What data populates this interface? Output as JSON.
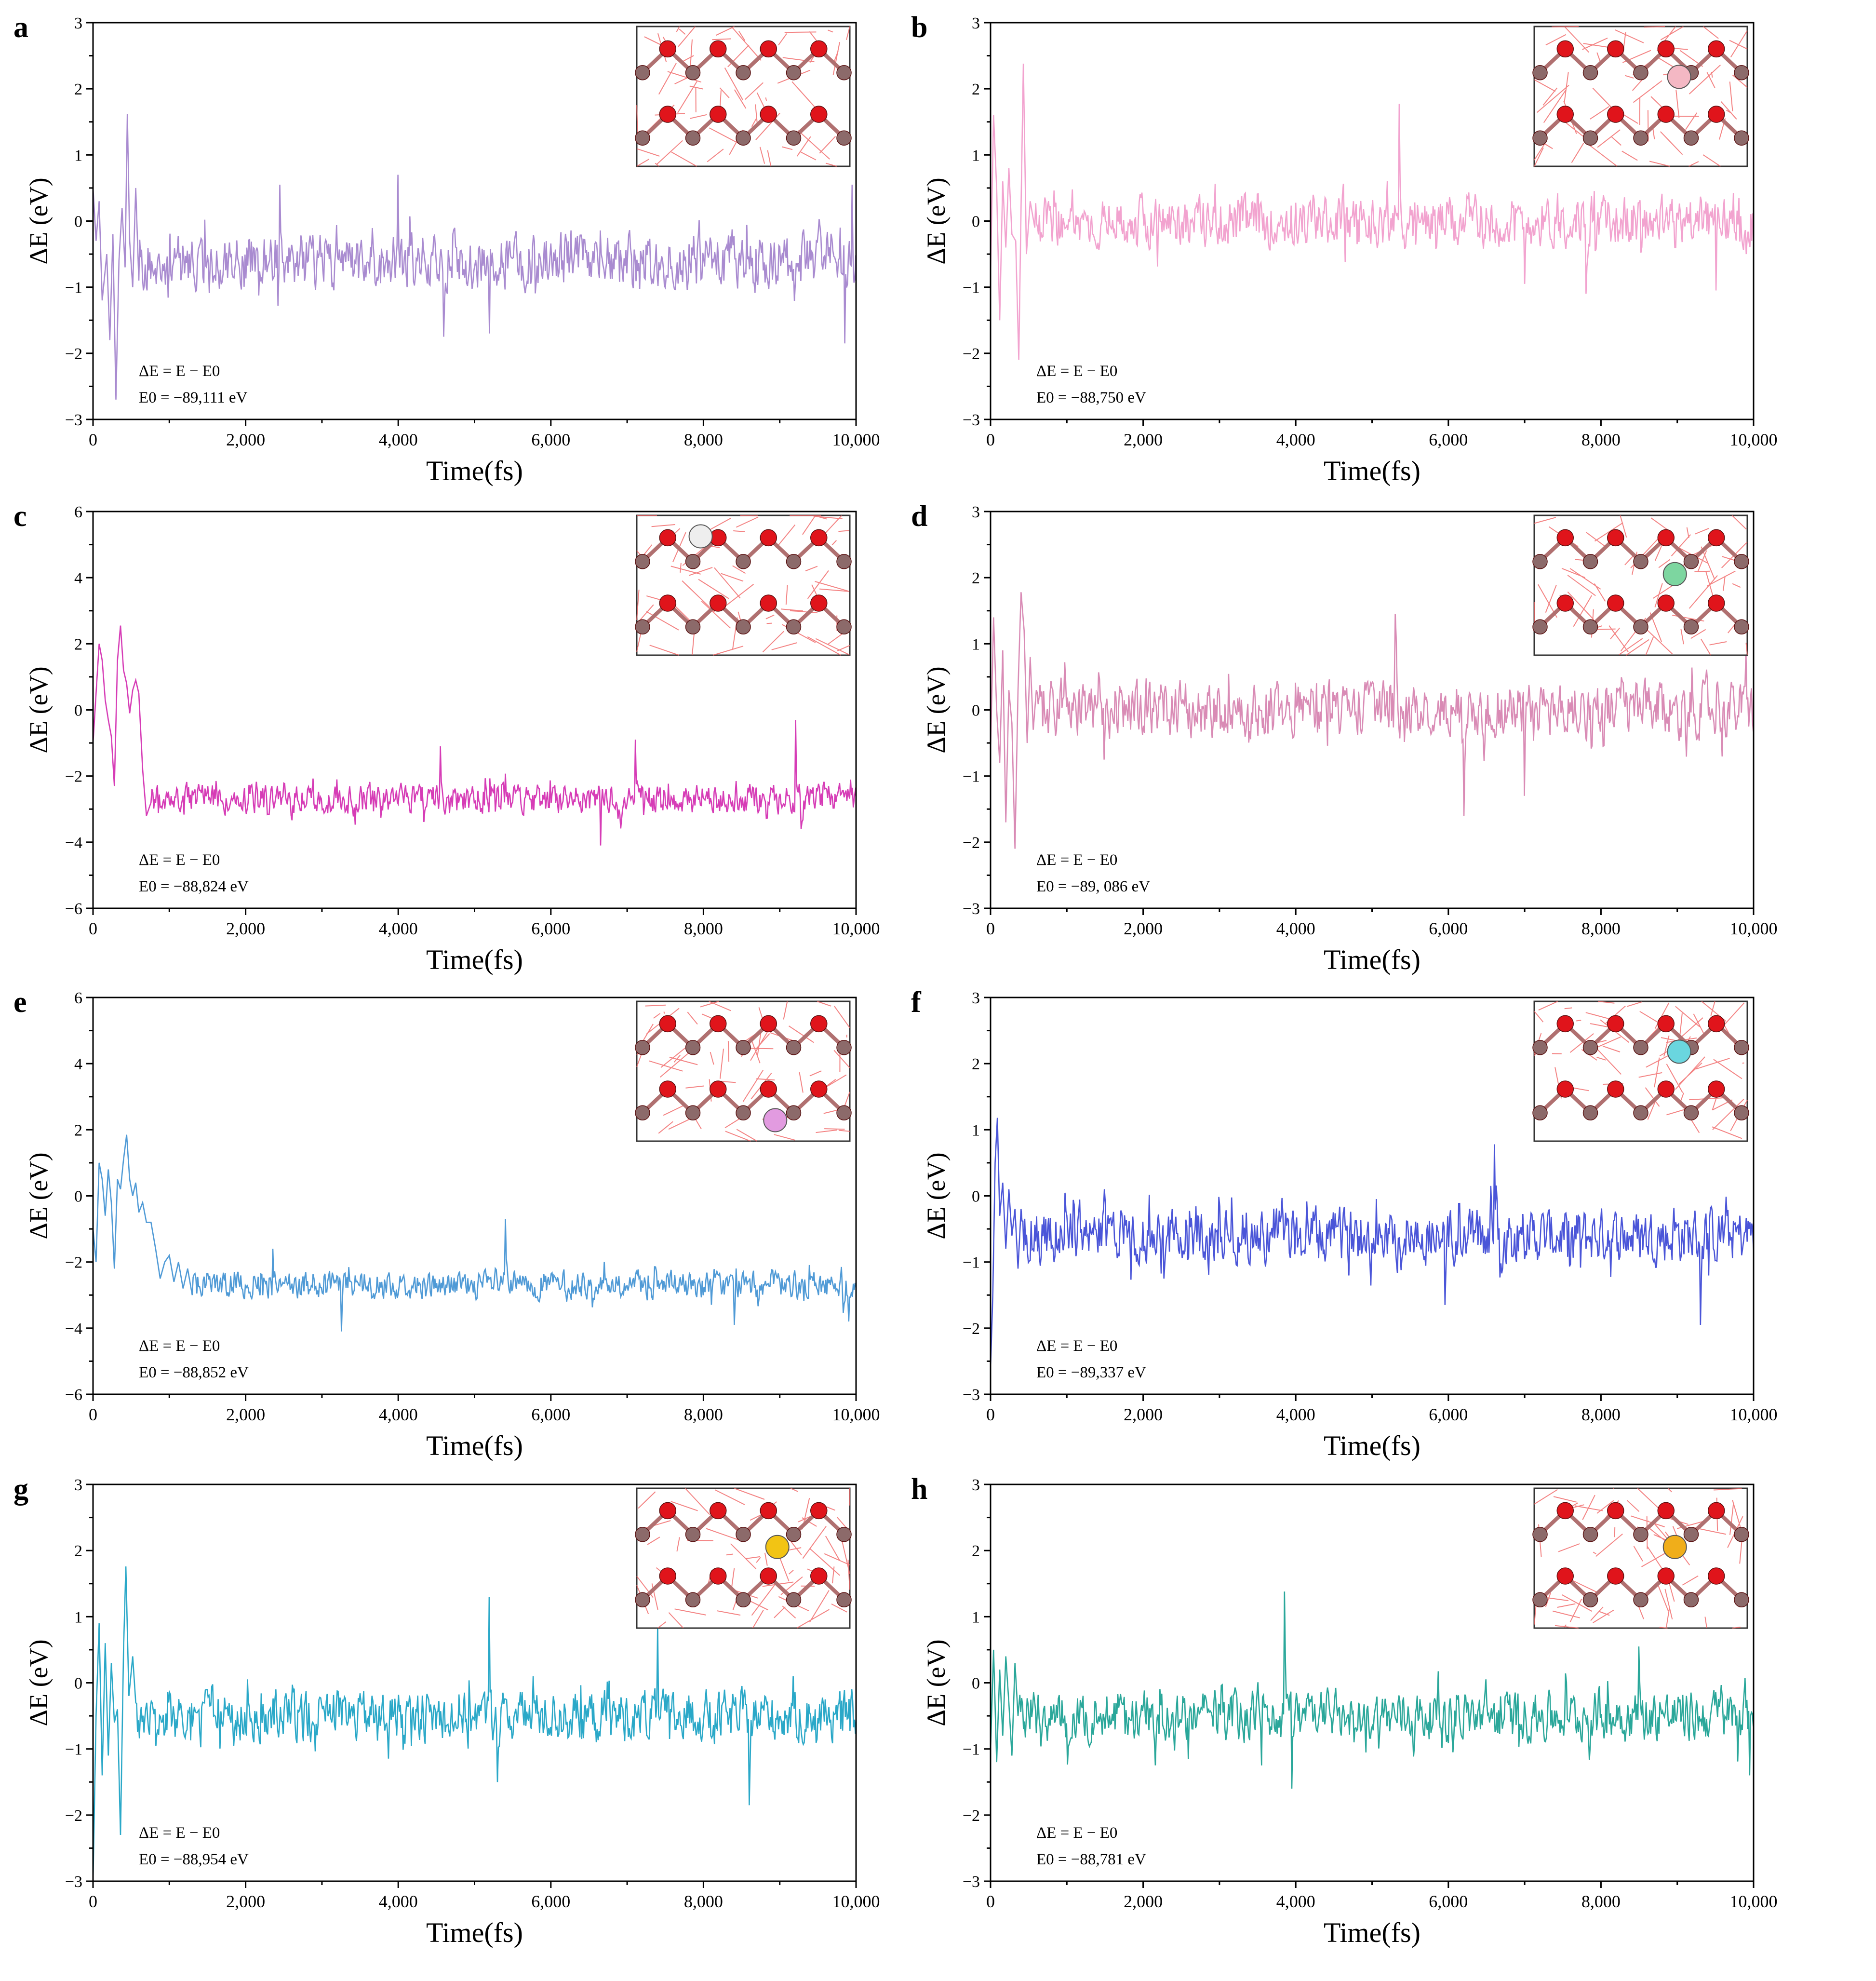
{
  "figure": {
    "x_label": "Time(fs)",
    "y_label": "ΔE (eV)",
    "delta_label": "ΔE = E − E0",
    "axis_color": "#000000",
    "inset": {
      "oxygen_color": "#e0141b",
      "cation_color": "#8c6a6a",
      "line_color": "#f06464",
      "border_color": "#333333"
    }
  },
  "chart_data": [
    {
      "id": "a",
      "type": "line",
      "panel_label": "a",
      "title": "",
      "xlabel": "Time(fs)",
      "ylabel": "ΔE (eV)",
      "xlim": [
        0,
        10000
      ],
      "ylim": [
        -3,
        3
      ],
      "xticks": [
        0,
        2000,
        4000,
        6000,
        8000,
        10000
      ],
      "xtick_labels": [
        "0",
        "2,000",
        "4,000",
        "6,000",
        "8,000",
        "10,000"
      ],
      "yticks": [
        -3,
        -2,
        -1,
        0,
        1,
        2,
        3
      ],
      "ytick_labels": [
        "−3",
        "−2",
        "−1",
        "0",
        "1",
        "2",
        "3"
      ],
      "annotation": "E0 = −89,111 eV",
      "color": "#a98bd0",
      "dopant_color": null,
      "dopant_pos": null,
      "series": {
        "name": "ΔE",
        "points": [
          [
            0,
            0.5
          ],
          [
            40,
            -0.3
          ],
          [
            80,
            0.3
          ],
          [
            120,
            -1.2
          ],
          [
            180,
            -0.5
          ],
          [
            220,
            -1.8
          ],
          [
            260,
            -0.2
          ],
          [
            300,
            -2.7
          ],
          [
            340,
            -0.6
          ],
          [
            380,
            0.2
          ],
          [
            420,
            -0.7
          ],
          [
            450,
            1.62
          ],
          [
            480,
            -0.3
          ],
          [
            520,
            -1.0
          ],
          [
            560,
            0.5
          ],
          [
            600,
            -0.9
          ]
        ],
        "noise": {
          "mean": -0.6,
          "amp": 0.55,
          "seed": 11,
          "start": 600,
          "spikes": [
            [
              2450,
              0.55
            ],
            [
              3990,
              0.7
            ],
            [
              4600,
              -1.75
            ],
            [
              5200,
              -1.7
            ],
            [
              9850,
              -1.85
            ],
            [
              9950,
              0.55
            ]
          ]
        }
      }
    },
    {
      "id": "b",
      "type": "line",
      "panel_label": "b",
      "title": "",
      "xlabel": "Time(fs)",
      "ylabel": "ΔE (eV)",
      "xlim": [
        0,
        10000
      ],
      "ylim": [
        -3,
        3
      ],
      "xticks": [
        0,
        2000,
        4000,
        6000,
        8000,
        10000
      ],
      "xtick_labels": [
        "0",
        "2,000",
        "4,000",
        "6,000",
        "8,000",
        "10,000"
      ],
      "yticks": [
        -3,
        -2,
        -1,
        0,
        1,
        2,
        3
      ],
      "ytick_labels": [
        "−3",
        "−2",
        "−1",
        "0",
        "1",
        "2",
        "3"
      ],
      "annotation": "E0 = −88,750 eV",
      "color": "#f2a3cf",
      "dopant_color": "#f4b8c4",
      "dopant_pos": "top-right",
      "series": {
        "name": "ΔE",
        "points": [
          [
            0,
            -0.8
          ],
          [
            40,
            1.6
          ],
          [
            80,
            0.5
          ],
          [
            120,
            -1.5
          ],
          [
            160,
            0.6
          ],
          [
            200,
            -0.4
          ],
          [
            240,
            0.8
          ],
          [
            280,
            -0.2
          ],
          [
            330,
            -0.3
          ],
          [
            370,
            -2.1
          ],
          [
            400,
            0.2
          ],
          [
            430,
            2.38
          ],
          [
            470,
            -0.5
          ],
          [
            520,
            0.3
          ],
          [
            580,
            -0.1
          ]
        ],
        "noise": {
          "mean": 0.0,
          "amp": 0.5,
          "seed": 22,
          "start": 580,
          "spikes": [
            [
              5350,
              1.77
            ],
            [
              7000,
              -0.95
            ],
            [
              7800,
              -1.1
            ],
            [
              9500,
              -1.05
            ],
            [
              9900,
              -0.5
            ]
          ]
        }
      }
    },
    {
      "id": "c",
      "type": "line",
      "panel_label": "c",
      "title": "",
      "xlabel": "Time(fs)",
      "ylabel": "ΔE (eV)",
      "xlim": [
        0,
        10000
      ],
      "ylim": [
        -6,
        6
      ],
      "xticks": [
        0,
        2000,
        4000,
        6000,
        8000,
        10000
      ],
      "xtick_labels": [
        "0",
        "2,000",
        "4,000",
        "6,000",
        "8,000",
        "10,000"
      ],
      "yticks": [
        -6,
        -4,
        -2,
        0,
        2,
        4,
        6
      ],
      "ytick_labels": [
        "−6",
        "−4",
        "−2",
        "0",
        "2",
        "4",
        "6"
      ],
      "annotation": "E0 = −88,824 eV",
      "color": "#d63cb6",
      "dopant_color": "#eeeeee",
      "dopant_pos": "top-left",
      "series": {
        "name": "ΔE",
        "points": [
          [
            0,
            -1.0
          ],
          [
            40,
            0.5
          ],
          [
            80,
            2.0
          ],
          [
            120,
            1.5
          ],
          [
            160,
            0.3
          ],
          [
            200,
            -0.3
          ],
          [
            240,
            -0.8
          ],
          [
            280,
            -2.3
          ],
          [
            320,
            1.5
          ],
          [
            360,
            2.55
          ],
          [
            400,
            1.2
          ],
          [
            440,
            0.8
          ],
          [
            480,
            -0.1
          ],
          [
            520,
            0.6
          ],
          [
            560,
            0.9
          ],
          [
            600,
            0.5
          ],
          [
            650,
            -1.8
          ],
          [
            700,
            -3.2
          ],
          [
            760,
            -2.8
          ]
        ],
        "noise": {
          "mean": -2.7,
          "amp": 0.6,
          "seed": 33,
          "start": 760,
          "spikes": [
            [
              4550,
              -1.1
            ],
            [
              6650,
              -4.1
            ],
            [
              7100,
              -0.9
            ],
            [
              9200,
              -0.3
            ],
            [
              9280,
              -3.6
            ]
          ]
        }
      }
    },
    {
      "id": "d",
      "type": "line",
      "panel_label": "d",
      "title": "",
      "xlabel": "Time(fs)",
      "ylabel": "ΔE (eV)",
      "xlim": [
        0,
        10000
      ],
      "ylim": [
        -3,
        3
      ],
      "xticks": [
        0,
        2000,
        4000,
        6000,
        8000,
        10000
      ],
      "xtick_labels": [
        "0",
        "2,000",
        "4,000",
        "6,000",
        "8,000",
        "10,000"
      ],
      "yticks": [
        -3,
        -2,
        -1,
        0,
        1,
        2,
        3
      ],
      "ytick_labels": [
        "−3",
        "−2",
        "−1",
        "0",
        "1",
        "2",
        "3"
      ],
      "annotation": "E0 = −89, 086 eV",
      "color": "#d98bb5",
      "dopant_color": "#7dd6a0",
      "dopant_pos": "mid-right",
      "series": {
        "name": "ΔE",
        "points": [
          [
            0,
            -0.6
          ],
          [
            40,
            1.4
          ],
          [
            80,
            0.0
          ],
          [
            120,
            -0.8
          ],
          [
            160,
            0.9
          ],
          [
            200,
            -1.7
          ],
          [
            240,
            0.3
          ],
          [
            280,
            -0.2
          ],
          [
            320,
            -2.1
          ],
          [
            360,
            0.3
          ],
          [
            400,
            1.78
          ],
          [
            440,
            1.2
          ],
          [
            480,
            -0.5
          ],
          [
            520,
            0.8
          ],
          [
            560,
            -0.3
          ],
          [
            600,
            0.3
          ]
        ],
        "noise": {
          "mean": 0.0,
          "amp": 0.55,
          "seed": 44,
          "start": 600,
          "spikes": [
            [
              5300,
              1.45
            ],
            [
              6200,
              -1.6
            ],
            [
              7000,
              -1.3
            ],
            [
              9900,
              0.9
            ]
          ]
        }
      }
    },
    {
      "id": "e",
      "type": "line",
      "panel_label": "e",
      "title": "",
      "xlabel": "Time(fs)",
      "ylabel": "ΔE (eV)",
      "xlim": [
        0,
        10000
      ],
      "ylim": [
        -6,
        6
      ],
      "xticks": [
        0,
        2000,
        4000,
        6000,
        8000,
        10000
      ],
      "xtick_labels": [
        "0",
        "2,000",
        "4,000",
        "6,000",
        "8,000",
        "10,000"
      ],
      "yticks": [
        -6,
        -4,
        -2,
        0,
        2,
        4,
        6
      ],
      "ytick_labels": [
        "−6",
        "−4",
        "−2",
        "0",
        "2",
        "4",
        "6"
      ],
      "annotation": "E0 = −88,852 eV",
      "color": "#4f9ad6",
      "dopant_color": "#e29be0",
      "dopant_pos": "bottom-mid",
      "series": {
        "name": "ΔE",
        "points": [
          [
            0,
            -1.0
          ],
          [
            40,
            -2.0
          ],
          [
            80,
            1.0
          ],
          [
            120,
            0.5
          ],
          [
            160,
            -0.6
          ],
          [
            200,
            0.8
          ],
          [
            240,
            -0.2
          ],
          [
            280,
            -2.2
          ],
          [
            320,
            0.5
          ],
          [
            360,
            0.2
          ],
          [
            400,
            1.1
          ],
          [
            440,
            1.85
          ],
          [
            480,
            0.5
          ],
          [
            520,
            0.0
          ],
          [
            560,
            0.4
          ],
          [
            600,
            -0.5
          ],
          [
            650,
            -0.2
          ],
          [
            700,
            -0.8
          ],
          [
            760,
            -0.8
          ],
          [
            820,
            -1.6
          ],
          [
            880,
            -2.5
          ],
          [
            940,
            -2.0
          ],
          [
            1000,
            -1.8
          ],
          [
            1060,
            -2.6
          ],
          [
            1120,
            -2.0
          ],
          [
            1180,
            -2.8
          ],
          [
            1240,
            -2.2
          ],
          [
            1300,
            -3.0
          ]
        ],
        "noise": {
          "mean": -2.7,
          "amp": 0.55,
          "seed": 55,
          "start": 1300,
          "spikes": [
            [
              2350,
              -1.6
            ],
            [
              3250,
              -4.1
            ],
            [
              5400,
              -0.7
            ],
            [
              8400,
              -3.9
            ],
            [
              9900,
              -3.8
            ]
          ]
        }
      }
    },
    {
      "id": "f",
      "type": "line",
      "panel_label": "f",
      "title": "",
      "xlabel": "Time(fs)",
      "ylabel": "ΔE (eV)",
      "xlim": [
        0,
        10000
      ],
      "ylim": [
        -3,
        3
      ],
      "xticks": [
        0,
        2000,
        4000,
        6000,
        8000,
        10000
      ],
      "xtick_labels": [
        "0",
        "2,000",
        "4,000",
        "6,000",
        "8,000",
        "10,000"
      ],
      "yticks": [
        -3,
        -2,
        -1,
        0,
        1,
        2,
        3
      ],
      "ytick_labels": [
        "−3",
        "−2",
        "−1",
        "0",
        "1",
        "2",
        "3"
      ],
      "annotation": "E0 = −89,337 eV",
      "color": "#4a55d8",
      "dopant_color": "#6ad6df",
      "dopant_pos": "top-right",
      "series": {
        "name": "ΔE",
        "points": [
          [
            0,
            -2.6
          ],
          [
            30,
            -1.5
          ],
          [
            60,
            0.5
          ],
          [
            90,
            1.18
          ],
          [
            120,
            -0.3
          ],
          [
            160,
            0.2
          ],
          [
            200,
            -0.8
          ],
          [
            240,
            0.1
          ],
          [
            280,
            -0.6
          ],
          [
            320,
            -0.2
          ],
          [
            360,
            -1.1
          ],
          [
            400,
            -0.2
          ]
        ],
        "noise": {
          "mean": -0.6,
          "amp": 0.55,
          "seed": 66,
          "start": 400,
          "spikes": [
            [
              6600,
              0.78
            ],
            [
              5950,
              -1.65
            ],
            [
              9300,
              -1.95
            ],
            [
              9950,
              -0.4
            ]
          ]
        }
      }
    },
    {
      "id": "g",
      "type": "line",
      "panel_label": "g",
      "title": "",
      "xlabel": "Time(fs)",
      "ylabel": "ΔE (eV)",
      "xlim": [
        0,
        10000
      ],
      "ylim": [
        -3,
        3
      ],
      "xticks": [
        0,
        2000,
        4000,
        6000,
        8000,
        10000
      ],
      "xtick_labels": [
        "0",
        "2,000",
        "4,000",
        "6,000",
        "8,000",
        "10,000"
      ],
      "yticks": [
        -3,
        -2,
        -1,
        0,
        1,
        2,
        3
      ],
      "ytick_labels": [
        "−3",
        "−2",
        "−1",
        "0",
        "1",
        "2",
        "3"
      ],
      "annotation": "E0 = −88,954 eV",
      "color": "#2aa8c8",
      "dopant_color": "#f2c414",
      "dopant_pos": "mid-right",
      "series": {
        "name": "ΔE",
        "points": [
          [
            0,
            -3.0
          ],
          [
            40,
            -0.5
          ],
          [
            80,
            0.9
          ],
          [
            120,
            -1.4
          ],
          [
            160,
            0.6
          ],
          [
            200,
            -1.1
          ],
          [
            240,
            0.3
          ],
          [
            280,
            -0.6
          ],
          [
            320,
            -0.4
          ],
          [
            360,
            -2.3
          ],
          [
            400,
            0.5
          ],
          [
            430,
            1.76
          ],
          [
            470,
            -0.2
          ],
          [
            520,
            0.4
          ],
          [
            560,
            -0.3
          ]
        ],
        "noise": {
          "mean": -0.5,
          "amp": 0.5,
          "seed": 77,
          "start": 560,
          "spikes": [
            [
              5200,
              1.3
            ],
            [
              5300,
              -1.5
            ],
            [
              7400,
              0.9
            ],
            [
              8600,
              -1.85
            ],
            [
              9800,
              -0.7
            ]
          ]
        }
      }
    },
    {
      "id": "h",
      "type": "line",
      "panel_label": "h",
      "title": "",
      "xlabel": "Time(fs)",
      "ylabel": "ΔE (eV)",
      "xlim": [
        0,
        10000
      ],
      "ylim": [
        -3,
        3
      ],
      "xticks": [
        0,
        2000,
        4000,
        6000,
        8000,
        10000
      ],
      "xtick_labels": [
        "0",
        "2,000",
        "4,000",
        "6,000",
        "8,000",
        "10,000"
      ],
      "yticks": [
        -3,
        -2,
        -1,
        0,
        1,
        2,
        3
      ],
      "ytick_labels": [
        "−3",
        "−2",
        "−1",
        "0",
        "1",
        "2",
        "3"
      ],
      "annotation": "E0 = −88,781 eV",
      "color": "#2aa79a",
      "dopant_color": "#f0ae1a",
      "dopant_pos": "mid-right",
      "series": {
        "name": "ΔE",
        "points": [
          [
            0,
            -1.0
          ],
          [
            40,
            0.5
          ],
          [
            80,
            -1.2
          ],
          [
            120,
            0.2
          ],
          [
            160,
            -0.8
          ],
          [
            200,
            0.4
          ],
          [
            240,
            -0.3
          ],
          [
            280,
            -1.1
          ],
          [
            320,
            0.3
          ],
          [
            360,
            -0.5
          ]
        ],
        "noise": {
          "mean": -0.5,
          "amp": 0.5,
          "seed": 88,
          "start": 360,
          "spikes": [
            [
              3850,
              1.38
            ],
            [
              3950,
              -1.6
            ],
            [
              8500,
              0.55
            ],
            [
              9950,
              -1.4
            ]
          ]
        }
      }
    }
  ]
}
